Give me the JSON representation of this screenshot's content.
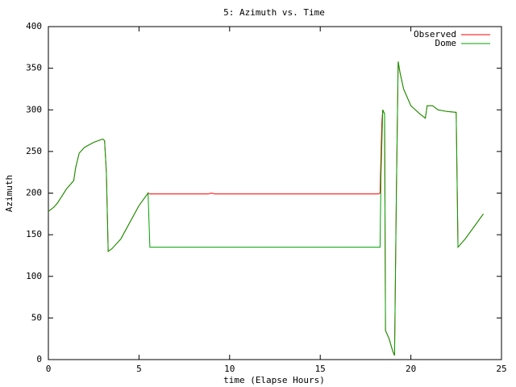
{
  "chart_data": {
    "type": "line",
    "title": "5: Azimuth vs. Time",
    "x_label": "time (Elapse Hours)",
    "y_label": "Azimuth",
    "xlim": [
      0,
      25
    ],
    "xticks": [
      0,
      5,
      10,
      15,
      20,
      25
    ],
    "ylim": [
      0,
      400
    ],
    "yticks": [
      0,
      50,
      100,
      150,
      200,
      250,
      300,
      350,
      400
    ],
    "legend": "top-right",
    "series": [
      {
        "name": "Observed",
        "color": "#ff0000",
        "x": [
          0,
          0.3,
          0.5,
          1,
          1.4,
          1.5,
          1.7,
          2,
          2.5,
          3,
          3.1,
          3.2,
          3.3,
          3.5,
          4,
          4.5,
          5,
          5.5,
          5.6,
          8.8,
          9,
          9.2,
          18.2,
          18.3,
          18.4,
          18.45,
          18.55,
          18.6,
          18.8,
          19.0,
          19.1,
          19.2,
          19.3,
          19.4,
          19.6,
          20,
          20.5,
          20.8,
          20.9,
          21.2,
          21.5,
          22,
          22.5,
          22.6,
          23,
          23.5,
          24
        ],
        "values": [
          178,
          183,
          188,
          205,
          215,
          230,
          248,
          255,
          261,
          265,
          263,
          225,
          130,
          133,
          145,
          165,
          185,
          200,
          199,
          199,
          200,
          199,
          199,
          200,
          285,
          300,
          295,
          35,
          25,
          10,
          5,
          200,
          358,
          345,
          325,
          305,
          295,
          290,
          305,
          305,
          300,
          298,
          297,
          135,
          145,
          160,
          175
        ]
      },
      {
        "name": "Dome",
        "color": "#00a000",
        "x": [
          0,
          0.3,
          0.5,
          1,
          1.4,
          1.5,
          1.7,
          2,
          2.5,
          3,
          3.1,
          3.2,
          3.3,
          3.5,
          4,
          4.5,
          5,
          5.5,
          5.6,
          18.3,
          18.35,
          18.45,
          18.55,
          18.6,
          18.8,
          19.0,
          19.1,
          19.2,
          19.3,
          19.4,
          19.6,
          20,
          20.5,
          20.8,
          20.9,
          21.2,
          21.5,
          22,
          22.5,
          22.6,
          23,
          23.5,
          24
        ],
        "values": [
          178,
          183,
          188,
          205,
          215,
          230,
          248,
          255,
          261,
          265,
          263,
          225,
          130,
          133,
          145,
          165,
          185,
          200,
          135,
          135,
          220,
          300,
          295,
          35,
          25,
          10,
          5,
          200,
          358,
          345,
          325,
          305,
          295,
          290,
          305,
          305,
          300,
          298,
          297,
          135,
          145,
          160,
          175
        ]
      }
    ]
  }
}
